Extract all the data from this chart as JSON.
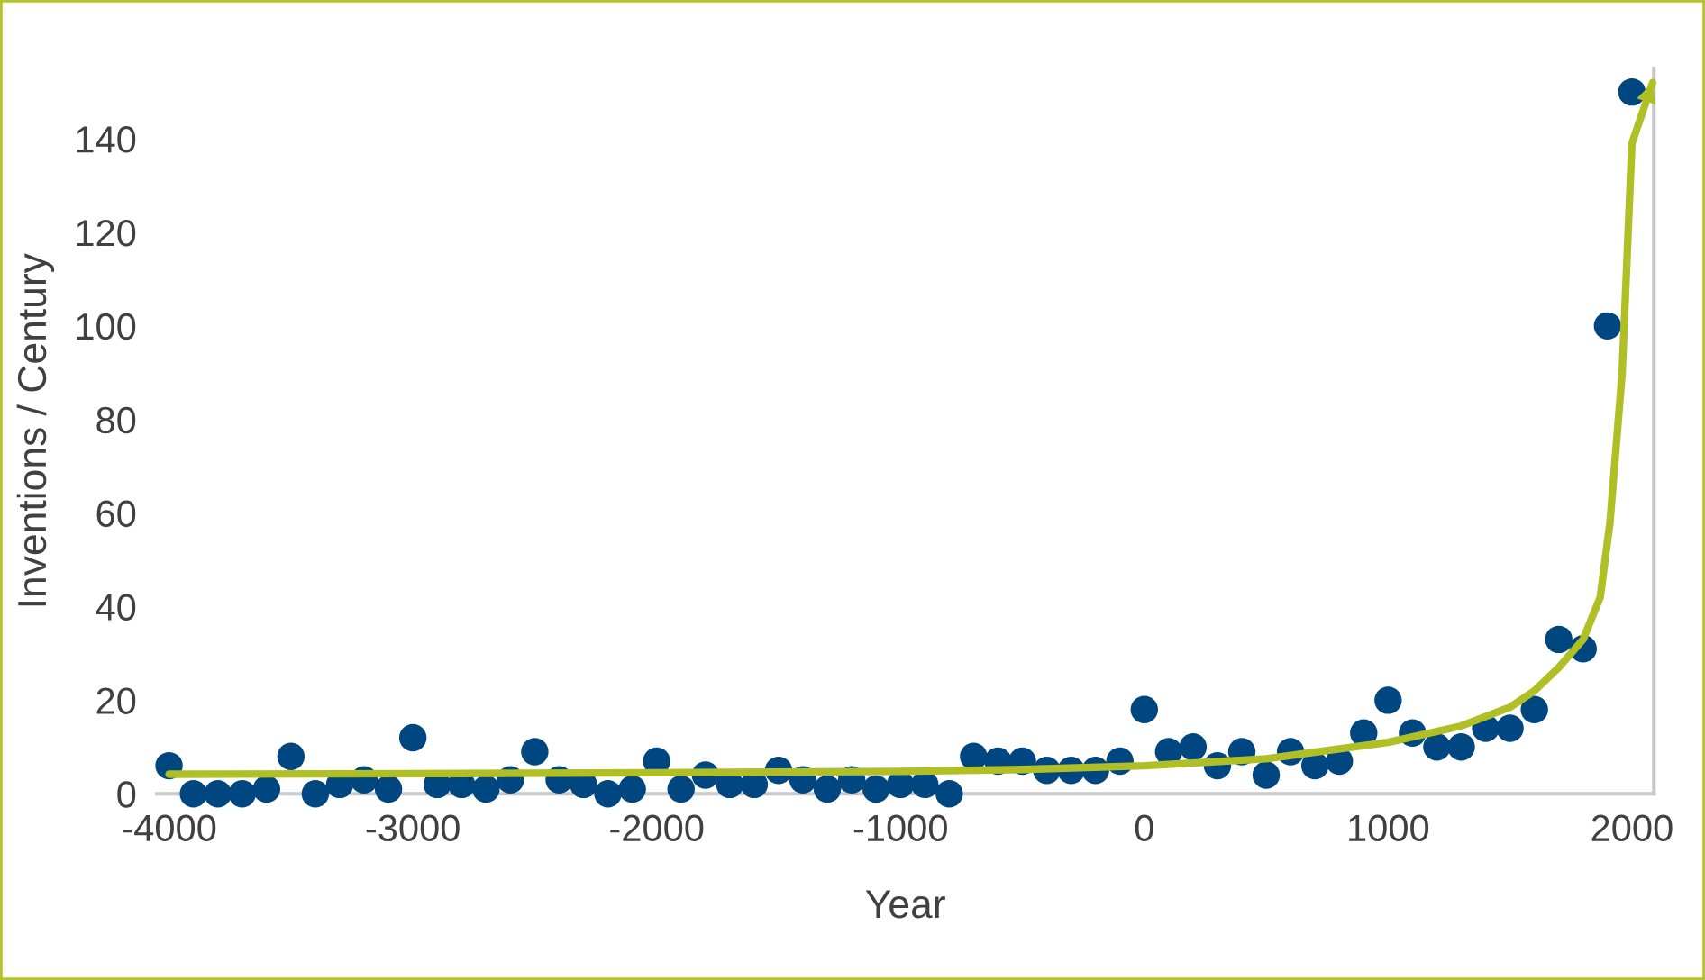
{
  "chart_data": {
    "type": "scatter",
    "xlabel": "Year",
    "ylabel": "Inventions / Century",
    "xlim": [
      -4050,
      2090
    ],
    "ylim": [
      0,
      155
    ],
    "xticks": [
      -4000,
      -3000,
      -2000,
      -1000,
      0,
      1000,
      2000
    ],
    "yticks": [
      0,
      20,
      40,
      60,
      80,
      100,
      120,
      140
    ],
    "grid": false,
    "legend": false,
    "series": [
      {
        "color": "#004680",
        "marker": "circle",
        "x": [
          -4000,
          -3900,
          -3800,
          -3700,
          -3600,
          -3500,
          -3400,
          -3300,
          -3200,
          -3100,
          -3000,
          -2900,
          -2800,
          -2700,
          -2600,
          -2500,
          -2400,
          -2300,
          -2200,
          -2100,
          -2000,
          -1900,
          -1800,
          -1700,
          -1600,
          -1500,
          -1400,
          -1300,
          -1200,
          -1100,
          -1000,
          -900,
          -800,
          -700,
          -600,
          -500,
          -400,
          -300,
          -200,
          -100,
          0,
          100,
          200,
          300,
          400,
          500,
          600,
          700,
          800,
          900,
          1000,
          1100,
          1200,
          1300,
          1400,
          1500,
          1600,
          1700,
          1800,
          1900,
          2000
        ],
        "values": [
          6,
          0,
          0,
          0,
          1,
          8,
          0,
          2,
          3,
          1,
          12,
          2,
          2,
          1,
          3,
          9,
          3,
          2,
          0,
          1,
          7,
          1,
          4,
          2,
          2,
          5,
          3,
          1,
          3,
          1,
          2,
          2,
          0,
          8,
          7,
          7,
          5,
          5,
          5,
          7,
          18,
          9,
          10,
          6,
          9,
          4,
          9,
          6,
          7,
          13,
          20,
          13,
          10,
          10,
          14,
          14,
          18,
          33,
          31,
          100,
          150
        ]
      },
      {
        "type": "line",
        "color": "#afbf25",
        "marker": "none",
        "x": [
          -4000,
          -3000,
          -2000,
          -1000,
          -500,
          0,
          500,
          1000,
          1300,
          1500,
          1600,
          1700,
          1800,
          1870,
          1910,
          1960,
          2000,
          2085
        ],
        "values": [
          4.2,
          4.3,
          4.5,
          4.8,
          5.2,
          6,
          7.5,
          11,
          14.5,
          18.5,
          22,
          27,
          33,
          42,
          58,
          90,
          139,
          152
        ]
      }
    ]
  }
}
